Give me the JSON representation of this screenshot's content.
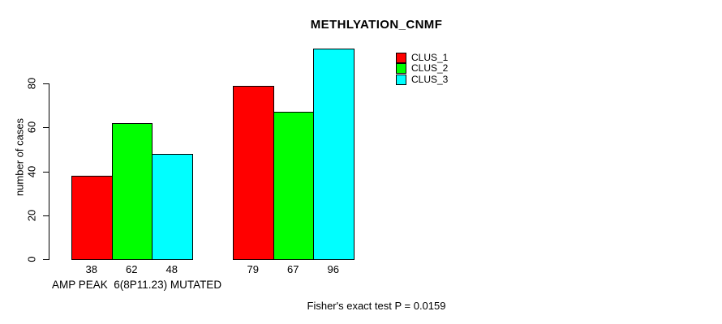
{
  "chart_data": {
    "type": "bar",
    "title": "METHLYATION_CNMF",
    "xlabel": "AMP PEAK  6(8P11.23) MUTATED",
    "ylabel": "number of cases",
    "annotation": "Fisher's exact test P = 0.0159",
    "yticks": [
      0,
      20,
      40,
      60,
      80
    ],
    "ylim": [
      0,
      80
    ],
    "grid": false,
    "legend_position": "top-right",
    "categories": [
      "",
      ""
    ],
    "series": [
      {
        "name": "CLUS_1",
        "color": "#ff0000",
        "values": [
          38,
          79
        ]
      },
      {
        "name": "CLUS_2",
        "color": "#00ff00",
        "values": [
          62,
          67
        ]
      },
      {
        "name": "CLUS_3",
        "color": "#00ffff",
        "values": [
          48,
          96
        ]
      }
    ]
  }
}
